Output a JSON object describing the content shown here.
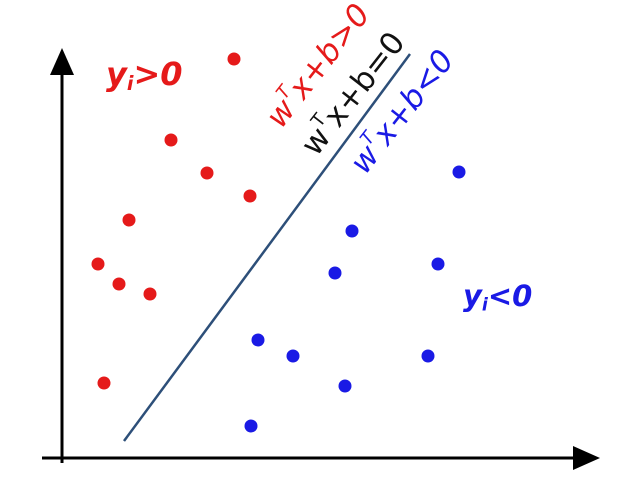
{
  "labels": {
    "region_pos": {
      "y": "y",
      "sub": "i",
      "rel": ">0"
    },
    "region_neg": {
      "y": "y",
      "sub": "i",
      "rel": "<0"
    },
    "boundary_pos": {
      "w": "w",
      "T": "T",
      "rest": "x+b>0"
    },
    "boundary_zero": {
      "w": "w",
      "T": "T",
      "rest": "x+b=0"
    },
    "boundary_neg": {
      "w": "w",
      "T": "T",
      "rest": "x+b<0"
    }
  },
  "colors": {
    "positive": "#e51a1a",
    "negative": "#1a1ae5",
    "boundary": "#2d4f79",
    "axis": "#000000"
  },
  "points": {
    "positive": [
      [
        234,
        59
      ],
      [
        171,
        140
      ],
      [
        207,
        173
      ],
      [
        250,
        196
      ],
      [
        129,
        220
      ],
      [
        98,
        264
      ],
      [
        119,
        284
      ],
      [
        150,
        294
      ],
      [
        104,
        383
      ]
    ],
    "negative": [
      [
        459,
        172
      ],
      [
        352,
        231
      ],
      [
        335,
        273
      ],
      [
        438,
        264
      ],
      [
        258,
        340
      ],
      [
        293,
        356
      ],
      [
        428,
        356
      ],
      [
        345,
        386
      ],
      [
        251,
        426
      ]
    ]
  }
}
